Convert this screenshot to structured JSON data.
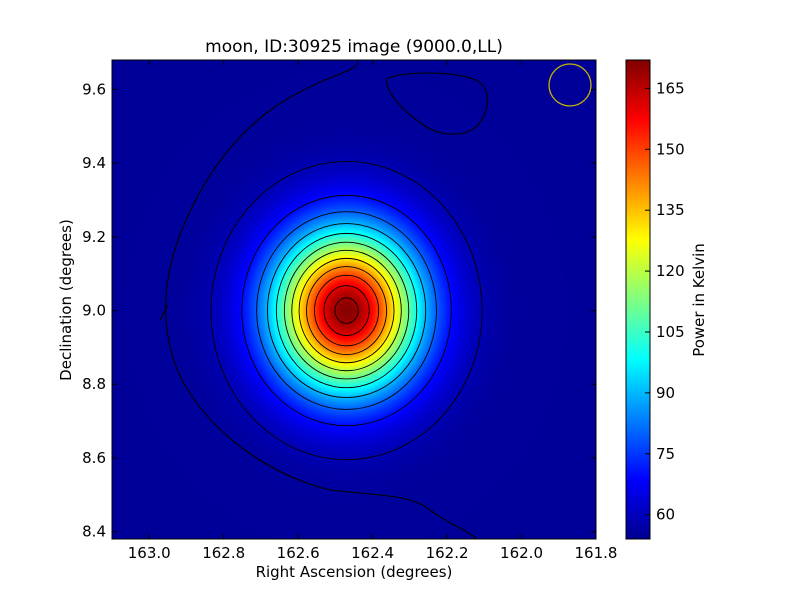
{
  "chart_data": {
    "type": "heatmap",
    "title": "moon, ID:30925 image (9000.0,LL)",
    "xlabel": "Right Ascension (degrees)",
    "ylabel": "Declination (degrees)",
    "colorbar_label": "Power in Kelvin",
    "xlim": [
      163.1,
      161.8
    ],
    "ylim": [
      8.38,
      9.68
    ],
    "x_ticks": [
      163.0,
      162.8,
      162.6,
      162.4,
      162.2,
      162.0,
      161.8
    ],
    "x_tick_labels": [
      "163.0",
      "162.8",
      "162.6",
      "162.4",
      "162.2",
      "162.0",
      "161.8"
    ],
    "y_ticks": [
      8.4,
      8.6,
      8.8,
      9.0,
      9.2,
      9.4,
      9.6
    ],
    "y_tick_labels": [
      "8.4",
      "8.6",
      "8.8",
      "9.0",
      "9.2",
      "9.4",
      "9.6"
    ],
    "colorbar_range": [
      54,
      172
    ],
    "colorbar_ticks": [
      60,
      75,
      90,
      105,
      120,
      135,
      150,
      165
    ],
    "colorbar_tick_labels": [
      "60",
      "75",
      "90",
      "105",
      "120",
      "135",
      "150",
      "165"
    ],
    "colormap": "jet",
    "background_level": 57,
    "source": {
      "peak_ra": 162.47,
      "peak_dec": 9.0,
      "peak_value": 171,
      "sigma_ra": 0.135,
      "sigma_dec": 0.15
    },
    "contour_levels": [
      60,
      70,
      80,
      90,
      100,
      110,
      120,
      130,
      140,
      150,
      160,
      168
    ],
    "beam_marker": {
      "ra": 161.865,
      "dec": 9.6,
      "radius_deg": 0.057,
      "color": "#c8b400"
    },
    "grid": false
  }
}
